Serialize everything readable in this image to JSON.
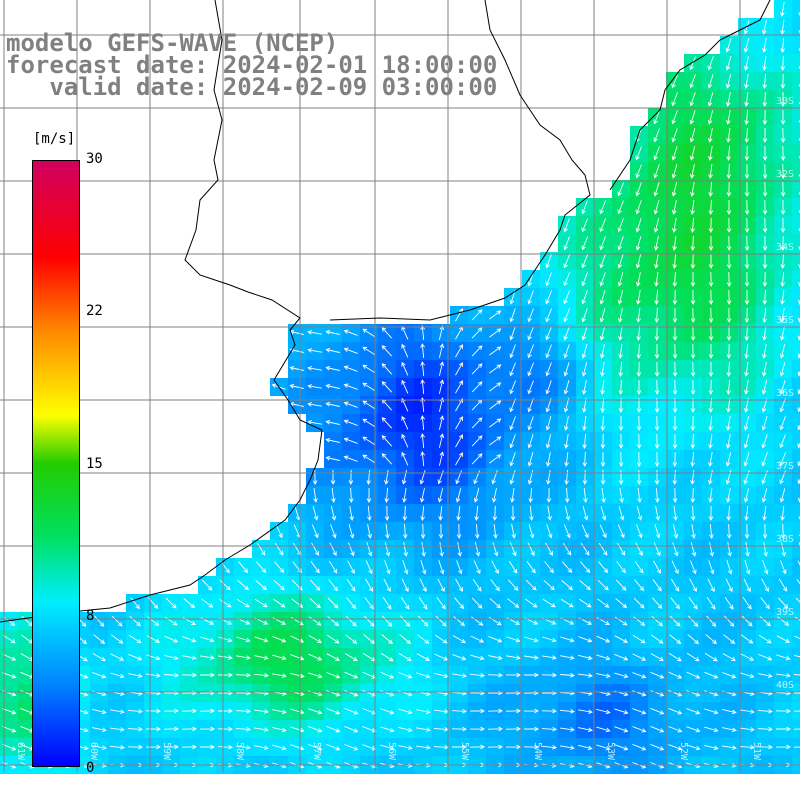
{
  "header": {
    "line1": "modelo GEFS-WAVE (NCEP)",
    "line2": "forecast date: 2024-02-01 18:00:00",
    "line3": "   valid date: 2024-02-09 03:00:00"
  },
  "colorbar": {
    "units": "[m/s]",
    "ticks": [
      "30",
      "22",
      "15",
      "8",
      "0"
    ]
  },
  "lat_labels": [
    "30S",
    "32S",
    "34S",
    "35S",
    "36S",
    "37S",
    "38S",
    "39S",
    "40S"
  ],
  "lon_labels": [
    "61W",
    "60W",
    "59W",
    "58W",
    "57W",
    "56W",
    "55W",
    "54W",
    "53W",
    "52W",
    "51W"
  ],
  "colors": {
    "land": "#ffffff",
    "coast": "#000000",
    "grid": "#808080",
    "arrows": "#ffffff",
    "header_text": "#808080"
  }
}
